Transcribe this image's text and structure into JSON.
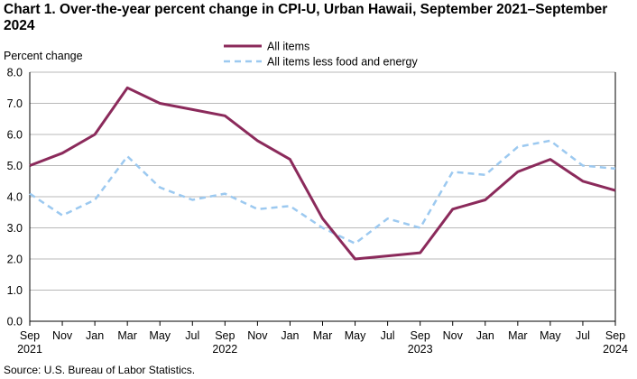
{
  "title": "Chart 1. Over-the-year percent change in CPI-U, Urban Hawaii, September 2021–September 2024",
  "source": "Source: U.S. Bureau of Labor Statistics.",
  "chart_data": {
    "type": "line",
    "title": "Chart 1. Over-the-year percent change in CPI-U, Urban Hawaii, September 2021–September 2024",
    "ylabel": "Percent change",
    "xlabel": "",
    "ylim": [
      0,
      8
    ],
    "yticks": [
      "0.0",
      "1.0",
      "2.0",
      "3.0",
      "4.0",
      "5.0",
      "6.0",
      "7.0",
      "8.0"
    ],
    "grid": true,
    "legend_position": "top-center",
    "x": [
      "Sep 2021",
      "Nov 2021",
      "Jan 2022",
      "Mar 2022",
      "May 2022",
      "Jul 2022",
      "Sep 2022",
      "Nov 2022",
      "Jan 2023",
      "Mar 2023",
      "May 2023",
      "Jul 2023",
      "Sep 2023",
      "Nov 2023",
      "Jan 2024",
      "Mar 2024",
      "May 2024",
      "Jul 2024",
      "Sep 2024"
    ],
    "x_tick_labels": [
      {
        "line1": "Sep",
        "line2": "2021"
      },
      {
        "line1": "Nov",
        "line2": ""
      },
      {
        "line1": "Jan",
        "line2": ""
      },
      {
        "line1": "Mar",
        "line2": ""
      },
      {
        "line1": "May",
        "line2": ""
      },
      {
        "line1": "Jul",
        "line2": ""
      },
      {
        "line1": "Sep",
        "line2": "2022"
      },
      {
        "line1": "Nov",
        "line2": ""
      },
      {
        "line1": "Jan",
        "line2": ""
      },
      {
        "line1": "Mar",
        "line2": ""
      },
      {
        "line1": "May",
        "line2": ""
      },
      {
        "line1": "Jul",
        "line2": ""
      },
      {
        "line1": "Sep",
        "line2": "2023"
      },
      {
        "line1": "Nov",
        "line2": ""
      },
      {
        "line1": "Jan",
        "line2": ""
      },
      {
        "line1": "Mar",
        "line2": ""
      },
      {
        "line1": "May",
        "line2": ""
      },
      {
        "line1": "Jul",
        "line2": ""
      },
      {
        "line1": "Sep",
        "line2": "2024"
      }
    ],
    "series": [
      {
        "name": "All items",
        "color": "#8b2a5b",
        "style": "solid",
        "values": [
          5.0,
          5.4,
          6.0,
          7.5,
          7.0,
          6.8,
          6.6,
          5.8,
          5.2,
          3.3,
          2.0,
          2.1,
          2.2,
          3.6,
          3.9,
          4.8,
          5.2,
          4.5,
          4.2
        ]
      },
      {
        "name": "All items less food and energy",
        "color": "#9cc9f0",
        "style": "dashed",
        "values": [
          4.1,
          3.4,
          3.9,
          5.3,
          4.3,
          3.9,
          4.1,
          3.6,
          3.7,
          3.0,
          2.5,
          3.3,
          3.0,
          4.8,
          4.7,
          5.6,
          5.8,
          5.0,
          4.9
        ]
      }
    ]
  }
}
